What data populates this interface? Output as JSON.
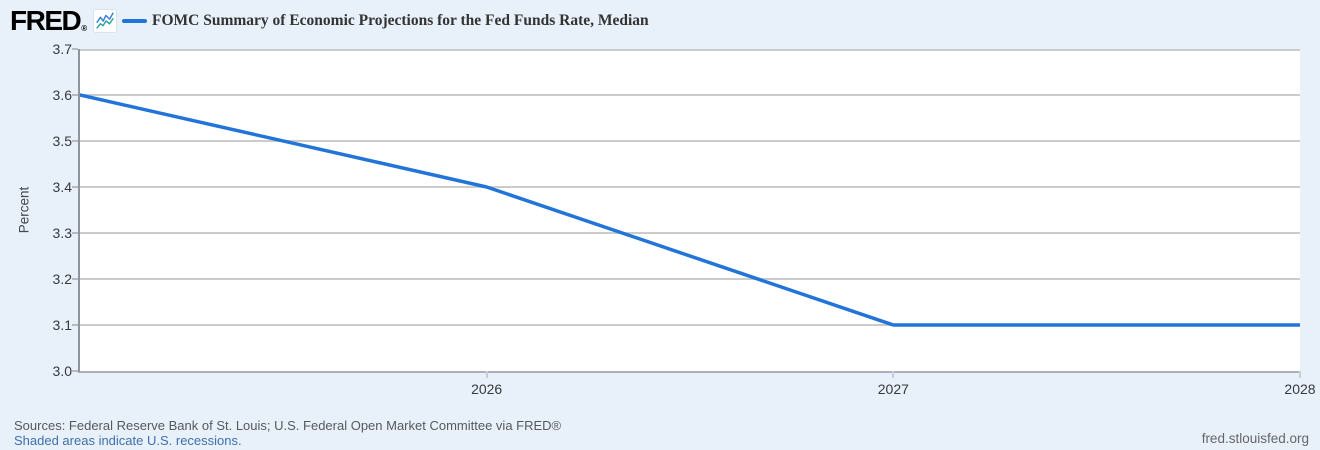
{
  "header": {
    "logo": "FRED",
    "logo_registered": "®",
    "legend": {
      "series_label": "FOMC Summary of Economic Projections for the Fed Funds Rate, Median"
    }
  },
  "chart_data": {
    "type": "line",
    "title": "FOMC Summary of Economic Projections for the Fed Funds Rate, Median",
    "x": [
      2025,
      2026,
      2027,
      2028
    ],
    "series": [
      {
        "name": "FOMC Summary of Economic Projections for the Fed Funds Rate, Median",
        "values": [
          3.6,
          3.4,
          3.1,
          3.1
        ],
        "color": "#2274d8"
      }
    ],
    "xlabel": "",
    "ylabel": "Percent",
    "xlim": [
      2025,
      2028
    ],
    "ylim": [
      3.0,
      3.7
    ],
    "yticks": [
      "3.0",
      "3.1",
      "3.2",
      "3.3",
      "3.4",
      "3.5",
      "3.6",
      "3.7"
    ],
    "xticks": [
      "2026",
      "2027",
      "2028"
    ],
    "grid": true,
    "legend_position": "top"
  },
  "footer": {
    "sources": "Sources: Federal Reserve Bank of St. Louis; U.S. Federal Open Market Committee via FRED®",
    "recessions_note": "Shaded areas indicate U.S. recessions.",
    "site": "fred.stlouisfed.org"
  },
  "colors": {
    "background": "#e8f1fa",
    "plot_background": "#ffffff",
    "gridline": "#cbcbcb",
    "line": "#2274d8",
    "link": "#3f6fad",
    "icon_line_blue": "#3b7fd9",
    "icon_line_teal": "#2da495"
  }
}
